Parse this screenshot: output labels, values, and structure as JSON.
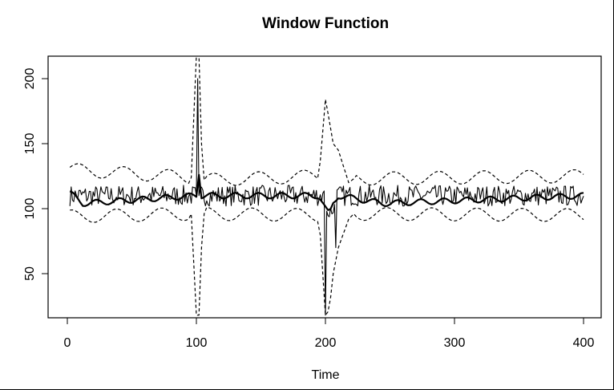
{
  "chart_data": {
    "type": "line",
    "title": "Window Function",
    "xlabel": "Time",
    "ylabel": "",
    "xlim": [
      -15,
      415
    ],
    "ylim": [
      18,
      218
    ],
    "x_ticks": [
      "0",
      "100",
      "200",
      "300",
      "400"
    ],
    "y_ticks": [
      "50",
      "100",
      "150",
      "200"
    ],
    "grid": false,
    "legend": "none",
    "series": [
      {
        "style": "thin solid",
        "x": [
          2,
          100,
          101,
          102,
          198,
          200,
          201,
          205,
          208,
          400
        ],
        "y": [
          115,
          110,
          200,
          110,
          112,
          18,
          98,
          96,
          70,
          112
        ],
        "baseline": 110,
        "noise_amplitude": 8
      },
      {
        "style": "thick solid",
        "x": [
          2,
          12,
          100,
          102,
          104,
          195,
          200,
          203,
          206,
          210,
          245,
          400
        ],
        "y": [
          112,
          104,
          110,
          128,
          110,
          110,
          100,
          95,
          104,
          110,
          104,
          110
        ]
      },
      {
        "style": "dashed upper",
        "x": [
          2,
          96,
          100,
          102,
          104,
          106,
          195,
          200,
          203,
          206,
          210,
          218,
          222,
          400
        ],
        "y": [
          130,
          124,
          218,
          218,
          150,
          122,
          125,
          184,
          168,
          150,
          145,
          120,
          123,
          125
        ]
      },
      {
        "style": "dashed lower",
        "x": [
          2,
          96,
          100,
          102,
          104,
          106,
          195,
          200,
          203,
          206,
          210,
          218,
          222,
          400
        ],
        "y": [
          94,
          96,
          18,
          18,
          70,
          96,
          95,
          18,
          22,
          50,
          70,
          92,
          96,
          95
        ]
      }
    ]
  },
  "colors": {
    "line": "#000000",
    "background": "#ffffff"
  }
}
